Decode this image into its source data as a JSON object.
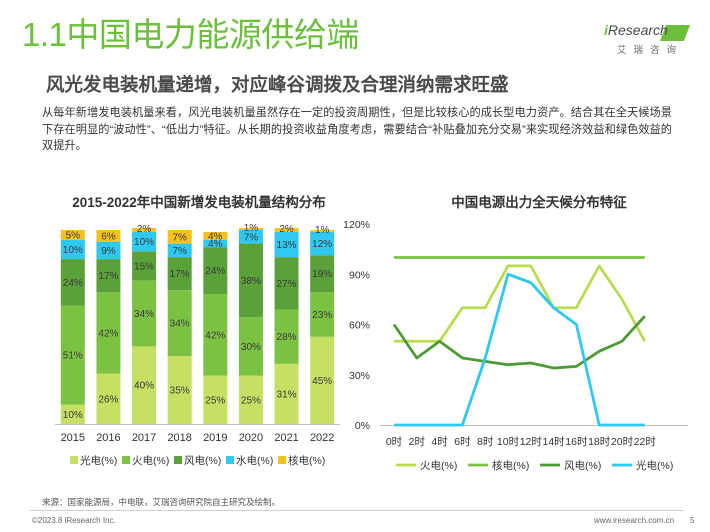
{
  "title": "1.1中国电力能源供给端",
  "subtitle": "风光发电装机量递增，对应峰谷调拨及合理消纳需求旺盛",
  "logo": {
    "word_i": "i",
    "word_rest": "Research",
    "subtext": "艾瑞咨询"
  },
  "intro": "从每年新增发电装机量来看，风光电装机量虽然存在一定的投资周期性，但是比较核心的成长型电力资产。结合其在全天候场景下存在明显的“波动性”、“低出力”特征。从长期的投资收益角度考虑，需要结合“补贴叠加充分交易”来实现经济效益和绿色效益的双提升。",
  "colors": {
    "solar": "#c5e063",
    "thermal": "#7cc242",
    "wind": "#5aa13a",
    "hydro": "#2ec8f0",
    "nuclear": "#f6c11e",
    "brand": "#6bbf3a"
  },
  "chart_data": [
    {
      "type": "bar",
      "stacked": true,
      "title": "2015-2022年中国新增发电装机量结构分布",
      "categories": [
        "2015",
        "2016",
        "2017",
        "2018",
        "2019",
        "2020",
        "2021",
        "2022"
      ],
      "series": [
        {
          "name": "光电(%)",
          "color": "#c5e063",
          "values": [
            10,
            26,
            40,
            35,
            25,
            25,
            31,
            45
          ],
          "labels": [
            "10%",
            "26%",
            "40%",
            "35%",
            "25%",
            "25%",
            "31%",
            "45%"
          ]
        },
        {
          "name": "火电(%)",
          "color": "#7cc242",
          "values": [
            51,
            42,
            34,
            34,
            42,
            30,
            28,
            23
          ],
          "labels": [
            "51%",
            "42%",
            "34%",
            "34%",
            "42%",
            "30%",
            "28%",
            "23%"
          ]
        },
        {
          "name": "风电(%)",
          "color": "#5aa13a",
          "values": [
            24,
            17,
            15,
            17,
            24,
            38,
            27,
            19
          ],
          "labels": [
            "24%",
            "17%",
            "15%",
            "17%",
            "24%",
            "38%",
            "27%",
            "19%"
          ]
        },
        {
          "name": "水电(%)",
          "color": "#2ec8f0",
          "values": [
            10,
            9,
            10,
            7,
            4,
            7,
            13,
            12
          ],
          "labels": [
            "10%",
            "9%",
            "10%",
            "7%",
            "4%",
            "7%",
            "13%",
            "12%"
          ]
        },
        {
          "name": "核电(%)",
          "color": "#f6c11e",
          "values": [
            5,
            6,
            2,
            7,
            4,
            1,
            2,
            1
          ],
          "labels": [
            "5%",
            "6%",
            "2%",
            "7%",
            "4%",
            "1%",
            "2%",
            "1%"
          ]
        }
      ],
      "ylim": [
        0,
        100
      ],
      "legend": "bottom"
    },
    {
      "type": "line",
      "title": "中国电源出力全天候分布特征",
      "x": [
        "0时",
        "2时",
        "4时",
        "6时",
        "8时",
        "10时",
        "12时",
        "14时",
        "16时",
        "18时",
        "20时",
        "22时"
      ],
      "yticks": [
        "0%",
        "30%",
        "60%",
        "90%",
        "120%"
      ],
      "ylim": [
        0,
        120
      ],
      "series": [
        {
          "name": "火电(%)",
          "color": "#b8dc4e",
          "values": [
            50,
            50,
            50,
            70,
            70,
            95,
            95,
            70,
            70,
            95,
            75,
            50
          ]
        },
        {
          "name": "核电(%)",
          "color": "#7cc242",
          "values": [
            100,
            100,
            100,
            100,
            100,
            100,
            100,
            100,
            100,
            100,
            100,
            100
          ]
        },
        {
          "name": "风电(%)",
          "color": "#4e9a35",
          "values": [
            60,
            40,
            50,
            40,
            38,
            36,
            37,
            34,
            35,
            44,
            50,
            65
          ]
        },
        {
          "name": "光电(%)",
          "color": "#2ec8f0",
          "values": [
            0,
            0,
            0,
            0,
            40,
            90,
            85,
            70,
            60,
            0,
            0,
            0
          ]
        }
      ],
      "legend": "bottom"
    }
  ],
  "footer": {
    "source": "来源：国家能源局，中电联，艾瑞咨询研究院自主研究及绘制。",
    "copyright": "©2023.8 iResearch Inc.",
    "url": "www.iresearch.com.cn",
    "page": "5"
  }
}
